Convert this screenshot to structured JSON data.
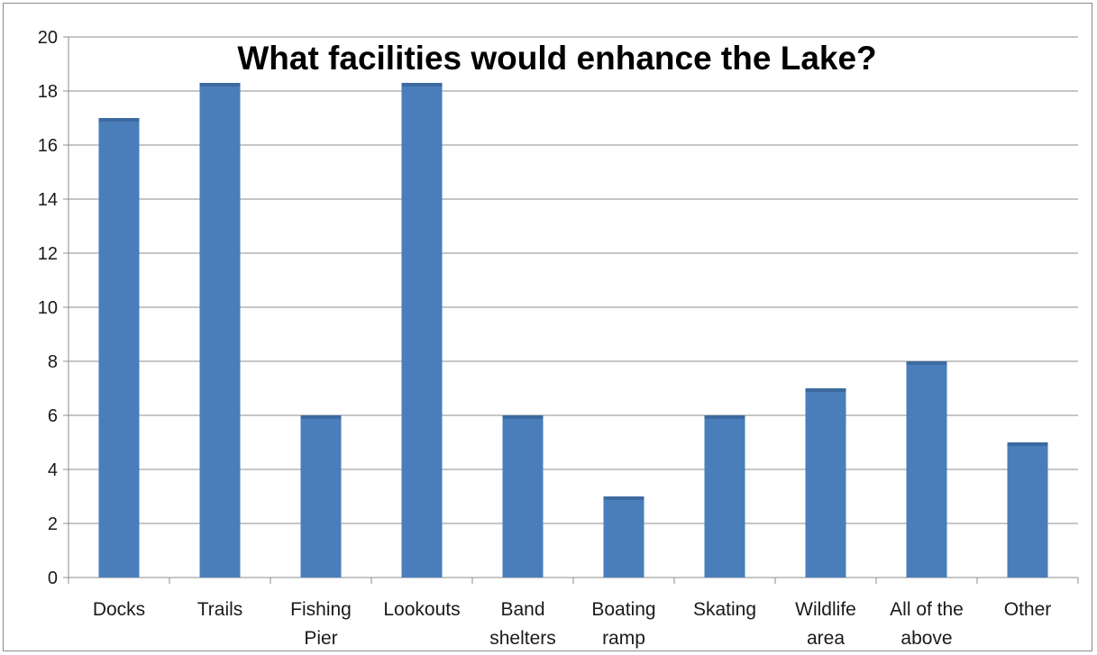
{
  "chart_data": {
    "type": "bar",
    "title": "What facilities would enhance the Lake?",
    "categories": [
      [
        "Docks"
      ],
      [
        "Trails"
      ],
      [
        "Fishing",
        "Pier"
      ],
      [
        "Lookouts"
      ],
      [
        "Band",
        "shelters"
      ],
      [
        "Boating",
        "ramp"
      ],
      [
        "Skating"
      ],
      [
        "Wildlife",
        "area"
      ],
      [
        "All of the",
        "above"
      ],
      [
        "Other"
      ]
    ],
    "values": [
      17,
      18.3,
      6,
      18.3,
      6,
      3,
      6,
      7,
      8,
      5
    ],
    "ylim": [
      0,
      20
    ],
    "yticks": [
      "0",
      "2",
      "4",
      "6",
      "8",
      "10",
      "12",
      "14",
      "16",
      "18",
      "20"
    ],
    "xlabel": "",
    "ylabel": "",
    "grid": true,
    "legend": "none",
    "bar_color": "#4a7ebb",
    "bar_top_color": "#3d6aa0",
    "grid_color": "#8c8c8c"
  }
}
